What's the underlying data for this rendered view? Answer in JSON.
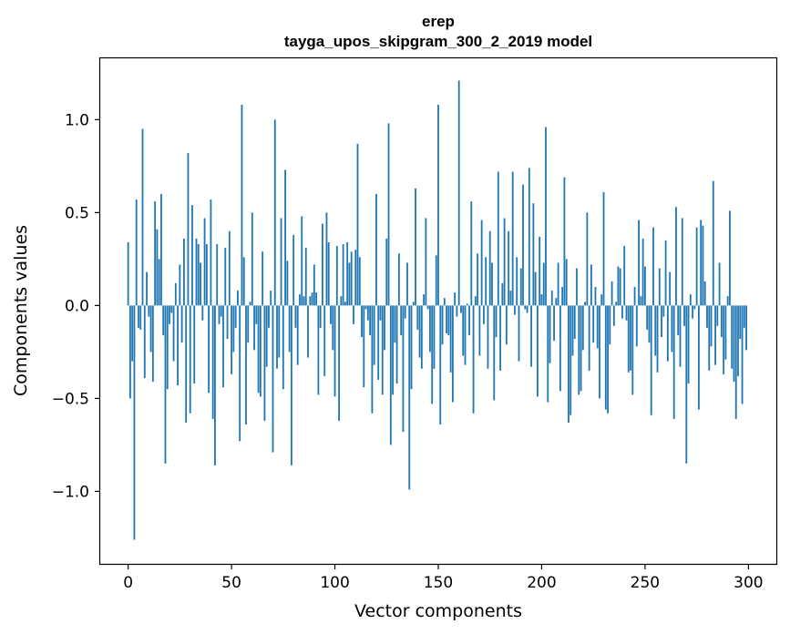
{
  "chart_data": {
    "type": "bar",
    "title_line1": "erep",
    "title_line2": "tayga_upos_skipgram_300_2_2019 model",
    "xlabel": "Vector components",
    "ylabel": "Components values",
    "xlim": [
      -13.5,
      313.5
    ],
    "ylim": [
      -1.39,
      1.33
    ],
    "xticks": [
      0,
      50,
      100,
      150,
      200,
      250,
      300
    ],
    "xtick_labels": [
      "0",
      "50",
      "100",
      "150",
      "200",
      "250",
      "300"
    ],
    "yticks": [
      -1.0,
      -0.5,
      0.0,
      0.5,
      1.0
    ],
    "ytick_labels": [
      "−1.0",
      "−0.5",
      "0.0",
      "0.5",
      "1.0"
    ],
    "color": "#1f77b4",
    "values": [
      0.34,
      -0.5,
      -0.3,
      -1.26,
      0.57,
      -0.12,
      -0.13,
      0.95,
      -0.39,
      0.18,
      -0.06,
      -0.25,
      -0.41,
      0.56,
      0.41,
      0.25,
      0.6,
      -0.16,
      -0.85,
      -0.45,
      -0.1,
      -0.04,
      -0.3,
      0.12,
      -0.43,
      0.22,
      -0.2,
      0.36,
      -0.63,
      0.82,
      -0.58,
      0.54,
      -0.42,
      0.36,
      0.33,
      0.23,
      -0.08,
      0.47,
      0.33,
      -0.47,
      0.57,
      -0.61,
      -0.86,
      0.33,
      -0.1,
      -0.06,
      -0.44,
      0.31,
      -0.18,
      0.4,
      -0.37,
      -0.25,
      -0.12,
      0.08,
      -0.73,
      1.08,
      0.26,
      -0.64,
      -0.2,
      0.02,
      0.5,
      -0.24,
      -0.1,
      -0.47,
      -0.49,
      0.29,
      -0.62,
      -0.33,
      -0.12,
      0.08,
      -0.79,
      1.0,
      -0.34,
      -0.28,
      0.47,
      -0.45,
      0.73,
      0.24,
      -0.25,
      -0.86,
      0.38,
      -0.12,
      -0.32,
      0.06,
      0.48,
      0.05,
      0.31,
      -0.28,
      0.05,
      0.07,
      0.22,
      0.07,
      -0.48,
      -0.12,
      0.44,
      -0.38,
      0.5,
      0.34,
      -0.1,
      -0.24,
      -0.49,
      0.32,
      -0.62,
      0.05,
      0.33,
      0.02,
      0.34,
      0.23,
      0.29,
      -0.1,
      0.3,
      0.87,
      0.26,
      -0.17,
      -0.44,
      -0.02,
      -0.08,
      -0.16,
      -0.58,
      -0.32,
      0.6,
      -0.4,
      -0.08,
      -0.48,
      -0.24,
      0.36,
      0.98,
      -0.75,
      -0.48,
      -0.2,
      -0.42,
      0.28,
      -0.16,
      -0.68,
      -0.07,
      0.23,
      -0.99,
      -0.45,
      0.02,
      0.63,
      -0.13,
      -0.28,
      -0.34,
      0.06,
      0.47,
      -0.02,
      -0.25,
      -0.53,
      -0.34,
      0.27,
      1.08,
      -0.64,
      -0.21,
      0.04,
      -0.15,
      -0.16,
      -0.36,
      -0.52,
      0.07,
      -0.06,
      1.21,
      -0.04,
      -0.27,
      -0.32,
      0.01,
      -0.16,
      0.56,
      -0.58,
      0.05,
      0.28,
      -0.27,
      0.46,
      -0.1,
      0.26,
      -0.34,
      0.4,
      0.23,
      -0.51,
      -0.17,
      0.72,
      -0.35,
      0.12,
      0.47,
      -0.21,
      0.4,
      0.08,
      0.72,
      -0.05,
      0.26,
      -0.3,
      0.2,
      0.65,
      -0.02,
      -0.04,
      0.74,
      -0.33,
      0.55,
      0.18,
      -0.49,
      0.37,
      0.06,
      0.23,
      0.96,
      -0.52,
      -0.31,
      0.08,
      -0.19,
      0.04,
      0.23,
      -0.46,
      0.1,
      0.69,
      0.25,
      -0.63,
      -0.59,
      -0.27,
      -0.18,
      0.2,
      -0.48,
      -0.46,
      -0.24,
      0.02,
      0.5,
      -0.35,
      0.22,
      -0.2,
      0.1,
      -0.23,
      -0.5,
      0.06,
      0.61,
      -0.56,
      -0.58,
      -0.21,
      0.13,
      -0.11,
      0.02,
      0.21,
      0.2,
      -0.07,
      0.32,
      -0.08,
      -0.36,
      -0.35,
      -0.48,
      0.1,
      -0.22,
      0.46,
      0.05,
      0.36,
      0.21,
      -0.13,
      -0.2,
      -0.59,
      0.42,
      -0.27,
      -0.36,
      0.2,
      -0.17,
      -0.06,
      0.35,
      -0.3,
      0.18,
      -0.25,
      -0.61,
      0.53,
      -0.16,
      -0.33,
      0.47,
      -0.11,
      -0.85,
      -0.42,
      0.06,
      -0.07,
      -0.02,
      0.42,
      -0.56,
      0.46,
      0.43,
      0.13,
      -0.12,
      -0.35,
      -0.22,
      0.67,
      -0.32,
      -0.11,
      0.23,
      -0.17,
      -0.37,
      -0.29,
      0.05,
      0.51,
      -0.34,
      -0.41,
      -0.61,
      -0.38,
      -0.18,
      -0.53,
      -0.12,
      -0.24
    ]
  }
}
